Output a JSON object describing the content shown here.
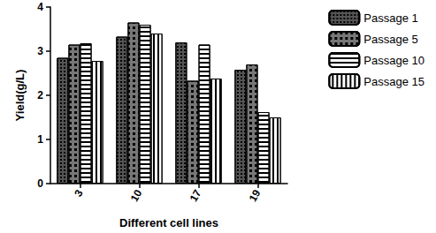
{
  "chart_data": {
    "type": "bar",
    "x_label": "Different cell lines",
    "y_label": "Yield(g/L)",
    "categories": [
      "3",
      "10",
      "17",
      "19"
    ],
    "series": [
      {
        "name": "Passage 1",
        "color": "#555555",
        "values": [
          2.85,
          3.33,
          3.2,
          2.58
        ]
      },
      {
        "name": "Passage 5",
        "color": "#777777",
        "values": [
          3.15,
          3.65,
          2.33,
          2.7
        ]
      },
      {
        "name": "Passage 10",
        "color": "#ffffff",
        "values": [
          3.18,
          3.6,
          3.15,
          1.62
        ]
      },
      {
        "name": "Passage 15",
        "color": "#ffffff",
        "values": [
          2.78,
          3.4,
          2.38,
          1.5
        ]
      }
    ],
    "ylim": [
      0,
      4
    ],
    "yticks": [
      0,
      1,
      2,
      3,
      4
    ],
    "grid": false,
    "legend": "right"
  }
}
